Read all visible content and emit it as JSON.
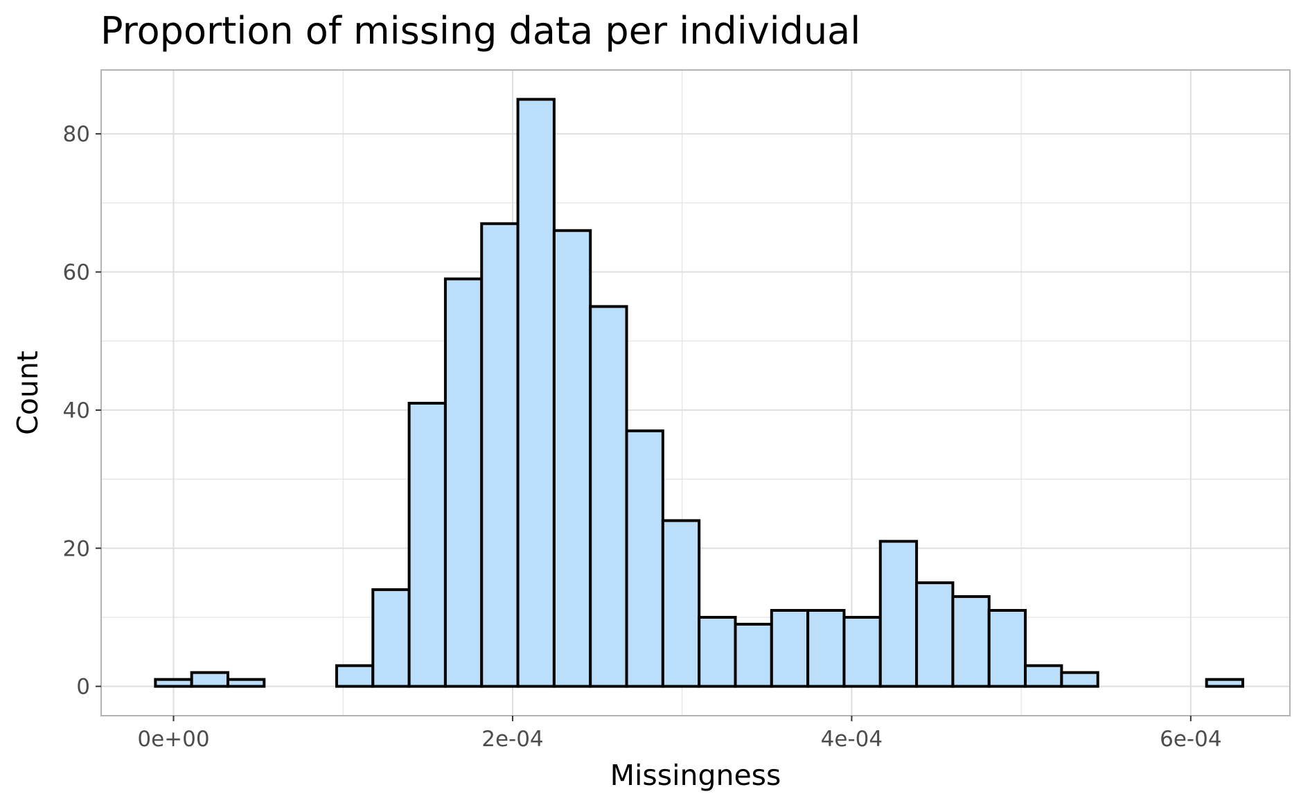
{
  "chart_data": {
    "type": "bar",
    "title": "Proportion of missing data per individual",
    "xlabel": "Missingness",
    "ylabel": "Count",
    "x_tick_labels": [
      "0e+00",
      "2e-04",
      "4e-04",
      "6e-04"
    ],
    "x_tick_values": [
      0,
      0.0002,
      0.0004,
      0.0006
    ],
    "y_tick_labels": [
      "0",
      "20",
      "40",
      "60",
      "80"
    ],
    "y_tick_values": [
      0,
      20,
      40,
      60,
      80
    ],
    "xlim": [
      -4.27e-05,
      0.0006585
    ],
    "ylim": [
      -4.25,
      89.25
    ],
    "bin_width": 2.138e-05,
    "bin_centers": [
      0,
      2.138e-05,
      4.276e-05,
      6.414e-05,
      8.552e-05,
      0.0001069,
      0.00012828,
      0.00014966,
      0.00017104,
      0.00019242,
      0.0002138,
      0.00023518,
      0.00025656,
      0.00027794,
      0.00029932,
      0.0003207,
      0.00034208,
      0.00036346,
      0.00038484,
      0.00040622,
      0.0004276,
      0.00044898,
      0.00047036,
      0.00049174,
      0.00051312,
      0.0005345,
      0.00055588,
      0.00057726,
      0.00059864,
      0.00062002
    ],
    "values": [
      1,
      2,
      1,
      0,
      0,
      3,
      14,
      41,
      59,
      67,
      85,
      66,
      55,
      37,
      24,
      10,
      9,
      11,
      11,
      10,
      21,
      15,
      13,
      11,
      3,
      2,
      0,
      0,
      0,
      1
    ],
    "grid": true,
    "legend": "none",
    "colors": {
      "bar_fill": "#bbdefb",
      "bar_stroke": "#000000",
      "grid": "#dedede",
      "panel_border": "#b3b3b3"
    }
  }
}
